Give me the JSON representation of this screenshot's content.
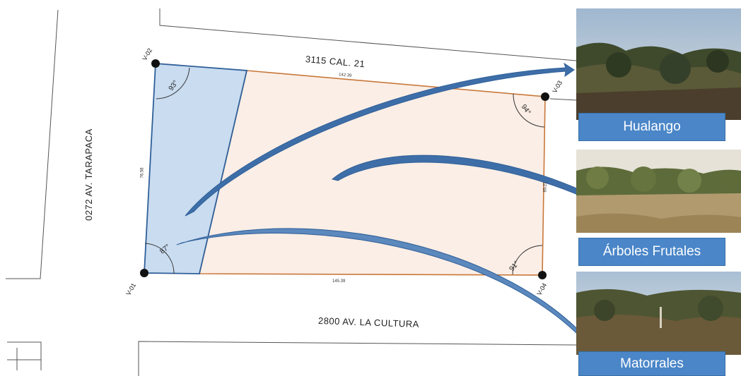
{
  "streets": {
    "north": "3115 CAL. 21",
    "south": "2800 AV. LA CULTURA",
    "west": "0272 AV. TARAPACA"
  },
  "vertices": [
    "V-01",
    "V-02",
    "V-03",
    "V-04"
  ],
  "angles": {
    "v01": "87°",
    "v02": "93°",
    "v03": "94°",
    "v04": "91°"
  },
  "measurements": {
    "north": "142.39",
    "south": "145.39",
    "west": "76.58",
    "east": "85.21"
  },
  "photos": [
    {
      "caption": "Hualango",
      "icon": "vegetation-photo"
    },
    {
      "caption": "Árboles Frutales",
      "icon": "fruit-trees-photo"
    },
    {
      "caption": "Matorrales",
      "icon": "shrubland-photo"
    }
  ],
  "colors": {
    "zone_blue": "#c9dcf0",
    "zone_peach": "#fbeee6",
    "boundary_orange": "#c8783a",
    "boundary_blue": "#2f5f98",
    "arrow": "#3e6ea8",
    "caption_bg": "#4a86c8"
  }
}
